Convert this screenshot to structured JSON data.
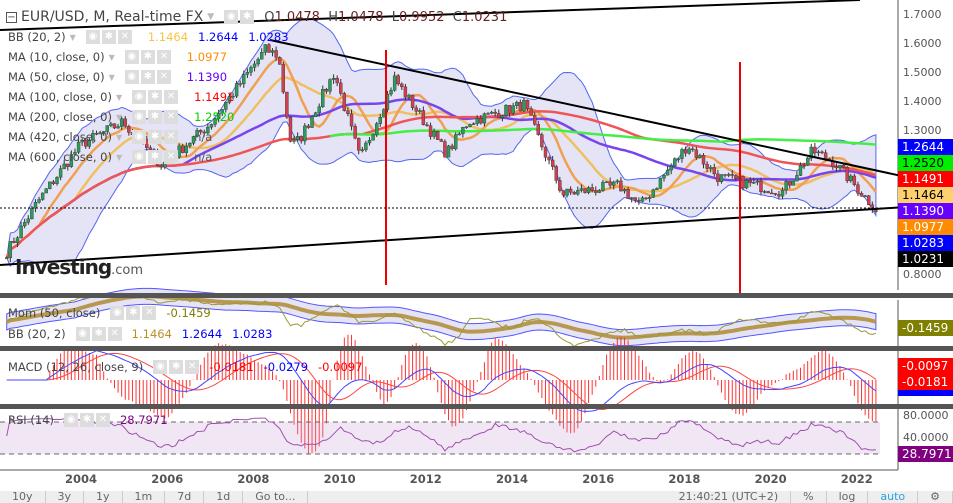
{
  "header": {
    "symbol": "EUR/USD, M, Real-time FX",
    "open_label": "O",
    "open": "1.0478",
    "high_label": "H",
    "high": "1.0478",
    "low_label": "L",
    "low": "0.9952",
    "close_label": "C",
    "close": "1.0231"
  },
  "indicators": [
    {
      "label": "BB (20, 2)",
      "values": [
        "1.1464",
        "1.2644",
        "1.0283"
      ],
      "colors": [
        "#f5c542",
        "#0000ff",
        "#0000ff"
      ]
    },
    {
      "label": "MA (10, close, 0)",
      "values": [
        "1.0977"
      ],
      "colors": [
        "#ff8c00"
      ]
    },
    {
      "label": "MA (50, close, 0)",
      "values": [
        "1.1390"
      ],
      "colors": [
        "#6600ff"
      ]
    },
    {
      "label": "MA (100, close, 0)",
      "values": [
        "1.1491"
      ],
      "colors": [
        "#ff0000"
      ]
    },
    {
      "label": "MA (200, close, 0)",
      "values": [
        "1.2520"
      ],
      "colors": [
        "#00cc00"
      ]
    },
    {
      "label": "MA (420, close, 0)",
      "values": [
        "n/a"
      ],
      "colors": [
        "#555"
      ]
    },
    {
      "label": "MA (600, close, 0)",
      "values": [
        "n/a"
      ],
      "colors": [
        "#555"
      ]
    }
  ],
  "price_axis": [
    "1.7000",
    "1.6000",
    "1.5000",
    "1.4000",
    "1.3000",
    "0.8000"
  ],
  "price_tags": [
    {
      "value": "1.2644",
      "color": "#0000ff"
    },
    {
      "value": "1.2520",
      "color": "#00ee00"
    },
    {
      "value": "1.1491",
      "color": "#ff0000"
    },
    {
      "value": "1.1464",
      "color": "#ffd070"
    },
    {
      "value": "1.1390",
      "color": "#6600ff"
    },
    {
      "value": "1.0977",
      "color": "#ff8c00"
    },
    {
      "value": "1.0283",
      "color": "#0000ff"
    },
    {
      "value": "1.0231",
      "color": "#000000"
    }
  ],
  "momentum": {
    "label": "Mom (50, close)",
    "value": "-0.1459",
    "tag": "-0.1459",
    "bb_label": "BB (20, 2)",
    "bb_values": [
      "1.1464",
      "1.2644",
      "1.0283"
    ]
  },
  "macd": {
    "label": "MACD (12, 26, close, 9)",
    "values": [
      "-0.0181",
      "-0.0279",
      "-0.0097"
    ],
    "tags": [
      "-0.0097",
      "-0.0181"
    ]
  },
  "rsi": {
    "label": "RSI (14)",
    "value": "28.7971",
    "axis": [
      "80.0000",
      "40.0000"
    ],
    "tag": "28.7971"
  },
  "time_axis": [
    "2004",
    "2006",
    "2008",
    "2010",
    "2012",
    "2014",
    "2016",
    "2018",
    "2020",
    "2022"
  ],
  "logo": {
    "text": "Investing",
    "suffix": ".com"
  },
  "bottom_bar": {
    "ranges": [
      "10y",
      "3y",
      "1y",
      "1m",
      "7d",
      "1d",
      "Go to..."
    ],
    "time": "21:40:21 (UTC+2)",
    "percent": "%",
    "log": "log",
    "auto": "auto"
  },
  "chart_data": {
    "type": "candlestick",
    "interval": "monthly",
    "price_path": [
      [
        2002.3,
        0.88
      ],
      [
        2003,
        1.05
      ],
      [
        2004,
        1.25
      ],
      [
        2005,
        1.33
      ],
      [
        2005.9,
        1.18
      ],
      [
        2007,
        1.32
      ],
      [
        2008.3,
        1.58
      ],
      [
        2008.6,
        1.56
      ],
      [
        2008.9,
        1.25
      ],
      [
        2009.1,
        1.27
      ],
      [
        2009.9,
        1.5
      ],
      [
        2010.5,
        1.2
      ],
      [
        2011.3,
        1.48
      ],
      [
        2012.5,
        1.22
      ],
      [
        2013,
        1.33
      ],
      [
        2014.3,
        1.39
      ],
      [
        2015.2,
        1.08
      ],
      [
        2016.5,
        1.11
      ],
      [
        2017,
        1.04
      ],
      [
        2018.1,
        1.25
      ],
      [
        2018.8,
        1.14
      ],
      [
        2020.3,
        1.09
      ],
      [
        2021,
        1.23
      ],
      [
        2021.5,
        1.19
      ],
      [
        2022.5,
        1.0231
      ]
    ]
  }
}
